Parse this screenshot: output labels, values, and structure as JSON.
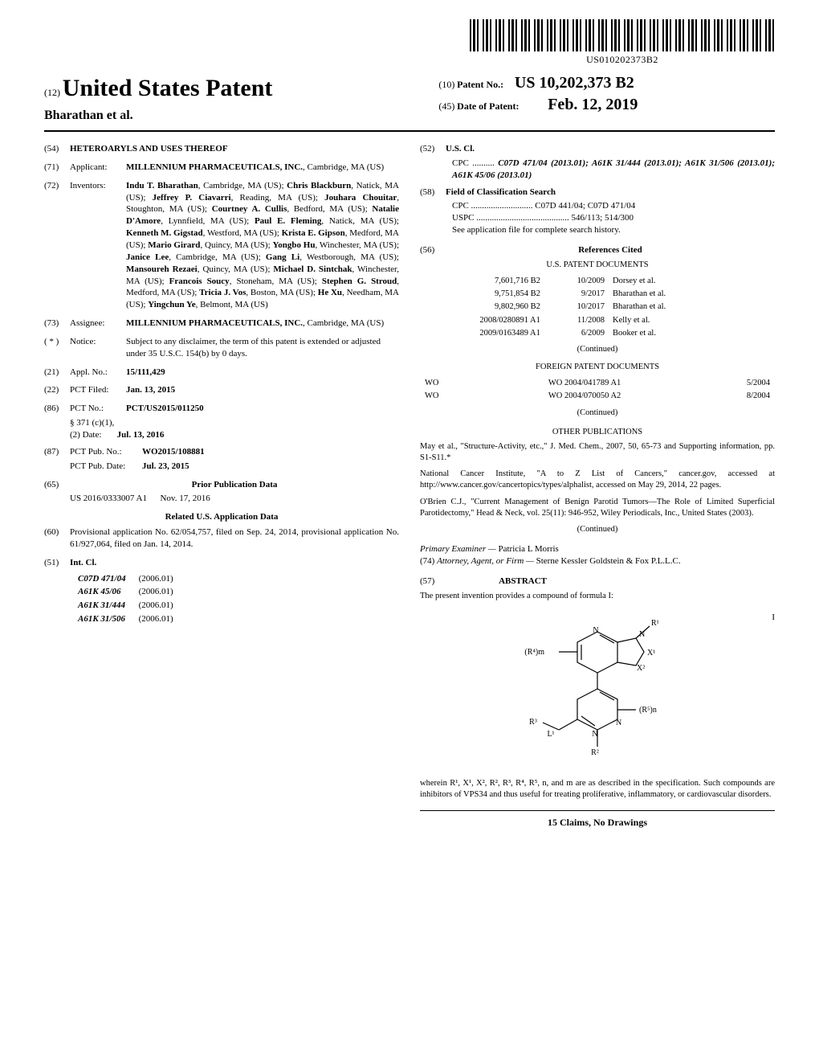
{
  "barcode_text": "US010202373B2",
  "header": {
    "code12": "(12)",
    "patent_type": "United States Patent",
    "authors": "Bharathan et al.",
    "code10": "(10)",
    "patent_no_label": "Patent No.:",
    "patent_no": "US 10,202,373 B2",
    "code45": "(45)",
    "date_label": "Date of Patent:",
    "date": "Feb. 12, 2019"
  },
  "f54": {
    "num": "(54)",
    "title": "HETEROARYLS AND USES THEREOF"
  },
  "f71": {
    "num": "(71)",
    "label": "Applicant:",
    "name": "MILLENNIUM PHARMACEUTICALS, INC.",
    "loc": "Cambridge, MA (US)"
  },
  "f72": {
    "num": "(72)",
    "label": "Inventors:",
    "body": "Indu T. Bharathan, Cambridge, MA (US); Chris Blackburn, Natick, MA (US); Jeffrey P. Ciavarri, Reading, MA (US); Jouhara Chouitar, Stoughton, MA (US); Courtney A. Cullis, Bedford, MA (US); Natalie D'Amore, Lynnfield, MA (US); Paul E. Fleming, Natick, MA (US); Kenneth M. Gigstad, Westford, MA (US); Krista E. Gipson, Medford, MA (US); Mario Girard, Quincy, MA (US); Yongbo Hu, Winchester, MA (US); Janice Lee, Cambridge, MA (US); Gang Li, Westborough, MA (US); Mansoureh Rezaei, Quincy, MA (US); Michael D. Sintchak, Winchester, MA (US); Francois Soucy, Stoneham, MA (US); Stephen G. Stroud, Medford, MA (US); Tricia J. Vos, Boston, MA (US); He Xu, Needham, MA (US); Yingchun Ye, Belmont, MA (US)"
  },
  "f73": {
    "num": "(73)",
    "label": "Assignee:",
    "name": "MILLENNIUM PHARMACEUTICALS, INC.",
    "loc": "Cambridge, MA (US)"
  },
  "notice": {
    "num": "( * )",
    "label": "Notice:",
    "body": "Subject to any disclaimer, the term of this patent is extended or adjusted under 35 U.S.C. 154(b) by 0 days."
  },
  "f21": {
    "num": "(21)",
    "label": "Appl. No.:",
    "val": "15/111,429"
  },
  "f22": {
    "num": "(22)",
    "label": "PCT Filed:",
    "val": "Jan. 13, 2015"
  },
  "f86": {
    "num": "(86)",
    "label": "PCT No.:",
    "val": "PCT/US2015/011250",
    "sub1": "§ 371 (c)(1),",
    "sub2": "(2) Date:",
    "sub2val": "Jul. 13, 2016"
  },
  "f87": {
    "num": "(87)",
    "label": "PCT Pub. No.:",
    "val": "WO2015/108881",
    "subl": "PCT Pub. Date:",
    "subv": "Jul. 23, 2015"
  },
  "f65": {
    "num": "(65)",
    "title": "Prior Publication Data",
    "pub": "US 2016/0333007 A1",
    "pubdate": "Nov. 17, 2016"
  },
  "related": {
    "title": "Related U.S. Application Data",
    "num": "(60)",
    "body": "Provisional application No. 62/054,757, filed on Sep. 24, 2014, provisional application No. 61/927,064, filed on Jan. 14, 2014."
  },
  "f51": {
    "num": "(51)",
    "label": "Int. Cl.",
    "rows": [
      {
        "c": "C07D 471/04",
        "y": "(2006.01)"
      },
      {
        "c": "A61K 45/06",
        "y": "(2006.01)"
      },
      {
        "c": "A61K 31/444",
        "y": "(2006.01)"
      },
      {
        "c": "A61K 31/506",
        "y": "(2006.01)"
      }
    ]
  },
  "f52": {
    "num": "(52)",
    "label": "U.S. Cl.",
    "cpc_pre": "CPC",
    "cpc": "C07D 471/04 (2013.01); A61K 31/444 (2013.01); A61K 31/506 (2013.01); A61K 45/06 (2013.01)"
  },
  "f58": {
    "num": "(58)",
    "label": "Field of Classification Search",
    "cpc_pre": "CPC",
    "cpc": "C07D 441/04; C07D 471/04",
    "uspc_pre": "USPC",
    "uspc": "546/113; 514/300",
    "note": "See application file for complete search history."
  },
  "f56": {
    "num": "(56)",
    "title": "References Cited",
    "us_title": "U.S. PATENT DOCUMENTS",
    "us_rows": [
      {
        "a": "7,601,716 B2",
        "b": "10/2009",
        "c": "Dorsey et al."
      },
      {
        "a": "9,751,854 B2",
        "b": "9/2017",
        "c": "Bharathan et al."
      },
      {
        "a": "9,802,960 B2",
        "b": "10/2017",
        "c": "Bharathan et al."
      },
      {
        "a": "2008/0280891 A1",
        "b": "11/2008",
        "c": "Kelly et al."
      },
      {
        "a": "2009/0163489 A1",
        "b": "6/2009",
        "c": "Booker et al."
      }
    ],
    "fp_title": "FOREIGN PATENT DOCUMENTS",
    "fp_rows": [
      {
        "a": "WO",
        "b": "WO 2004/041789 A1",
        "c": "5/2004"
      },
      {
        "a": "WO",
        "b": "WO 2004/070050 A2",
        "c": "8/2004"
      }
    ],
    "continued": "(Continued)"
  },
  "other": {
    "title": "OTHER PUBLICATIONS",
    "p1": "May et al., \"Structure-Activity, etc.,\" J. Med. Chem., 2007, 50, 65-73 and Supporting information, pp. S1-S11.*",
    "p2": "National Cancer Institute, \"A to Z List of Cancers,\" cancer.gov, accessed at http://www.cancer.gov/cancertopics/types/alphalist, accessed on May 29, 2014, 22 pages.",
    "p3": "O'Brien C.J., \"Current Management of Benign Parotid Tumors—The Role of Limited Superficial Parotidectomy,\" Head & Neck, vol. 25(11): 946-952, Wiley Periodicals, Inc., United States (2003).",
    "continued": "(Continued)"
  },
  "examiner": {
    "label": "Primary Examiner —",
    "name": "Patricia L Morris"
  },
  "attorney": {
    "num": "(74)",
    "label": "Attorney, Agent, or Firm —",
    "name": "Sterne Kessler Goldstein & Fox P.L.L.C."
  },
  "abstract": {
    "num": "(57)",
    "title": "ABSTRACT",
    "intro": "The present invention provides a compound of formula I:",
    "formula_label": "I",
    "outro": "wherein R¹, X¹, X², R², R³, R⁴, R⁵, n, and m are as described in the specification. Such compounds are inhibitors of VPS34 and thus useful for treating proliferative, inflammatory, or cardiovascular disorders."
  },
  "footer": "15 Claims, No Drawings",
  "structure": {
    "labels": {
      "R1": "R¹",
      "X1": "X¹",
      "X2": "X²",
      "R2": "R²",
      "R3": "R³",
      "L1": "L¹",
      "R4m": "(R⁴)m",
      "R5n": "(R⁵)n",
      "N": "N"
    },
    "stroke": "#000000",
    "stroke_width": 1.2,
    "font_size": 10
  }
}
